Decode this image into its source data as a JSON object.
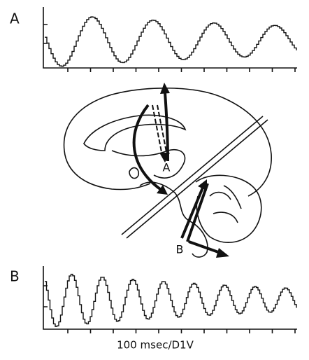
{
  "panel_a": {
    "label": "A"
  },
  "panel_b": {
    "label": "B"
  },
  "diagram": {
    "label_a": "A",
    "label_b": "B"
  },
  "scale_label": "100 msec/D1V"
}
